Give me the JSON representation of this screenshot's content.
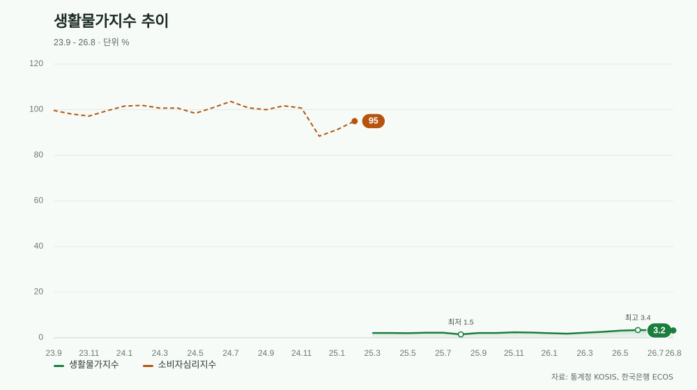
{
  "chart_data": {
    "type": "line",
    "title": "생활물가지수 추이",
    "subtitle": "23.9 - 26.8 · 단위 %",
    "xlim": [
      "23.9",
      "26.8"
    ],
    "ylim": [
      0,
      120
    ],
    "yticks": [
      0,
      20,
      40,
      60,
      80,
      100,
      120
    ],
    "xticks": [
      "23.9",
      "23.11",
      "24.1",
      "24.3",
      "24.5",
      "24.7",
      "24.9",
      "24.11",
      "25.1",
      "25.3",
      "25.5",
      "25.7",
      "25.9",
      "25.11",
      "26.1",
      "26.3",
      "26.5",
      "26.7",
      "26.8"
    ],
    "grid": true,
    "legend": "bottom-left",
    "series": [
      {
        "name": "생활물가지수",
        "color": "#1b7d3e",
        "dashed": false,
        "area_fill": true,
        "x": [
          "25.3",
          "25.4",
          "25.5",
          "25.6",
          "25.7",
          "25.8",
          "25.9",
          "25.10",
          "25.11",
          "25.12",
          "26.1",
          "26.2",
          "26.3",
          "26.4",
          "26.5",
          "26.6",
          "26.7",
          "26.8"
        ],
        "values": [
          2.1,
          2.1,
          2.0,
          2.2,
          2.2,
          1.5,
          2.1,
          2.1,
          2.4,
          2.3,
          2.0,
          1.8,
          2.2,
          2.6,
          3.1,
          3.4,
          3.3,
          3.2
        ]
      },
      {
        "name": "소비자심리지수",
        "color": "#b5540f",
        "dashed": true,
        "area_fill": false,
        "x": [
          "23.9",
          "23.10",
          "23.11",
          "23.12",
          "24.1",
          "24.2",
          "24.3",
          "24.4",
          "24.5",
          "24.6",
          "24.7",
          "24.8",
          "24.9",
          "24.10",
          "24.11",
          "24.12",
          "25.1",
          "25.2"
        ],
        "values": [
          99.7,
          98.1,
          97.2,
          99.5,
          101.6,
          101.9,
          100.7,
          100.7,
          98.4,
          100.9,
          103.6,
          100.8,
          100.0,
          101.7,
          100.7,
          88.4,
          91.2,
          95
        ]
      }
    ],
    "annotations": [
      {
        "text": "최저 1.5",
        "series": 0,
        "x": "25.8",
        "y": 1.5
      },
      {
        "text": "최고 3.4",
        "series": 0,
        "x": "26.6",
        "y": 3.4
      }
    ],
    "end_labels": true,
    "source": "자료: 통계청 KOSIS, 한국은행 ECOS"
  }
}
